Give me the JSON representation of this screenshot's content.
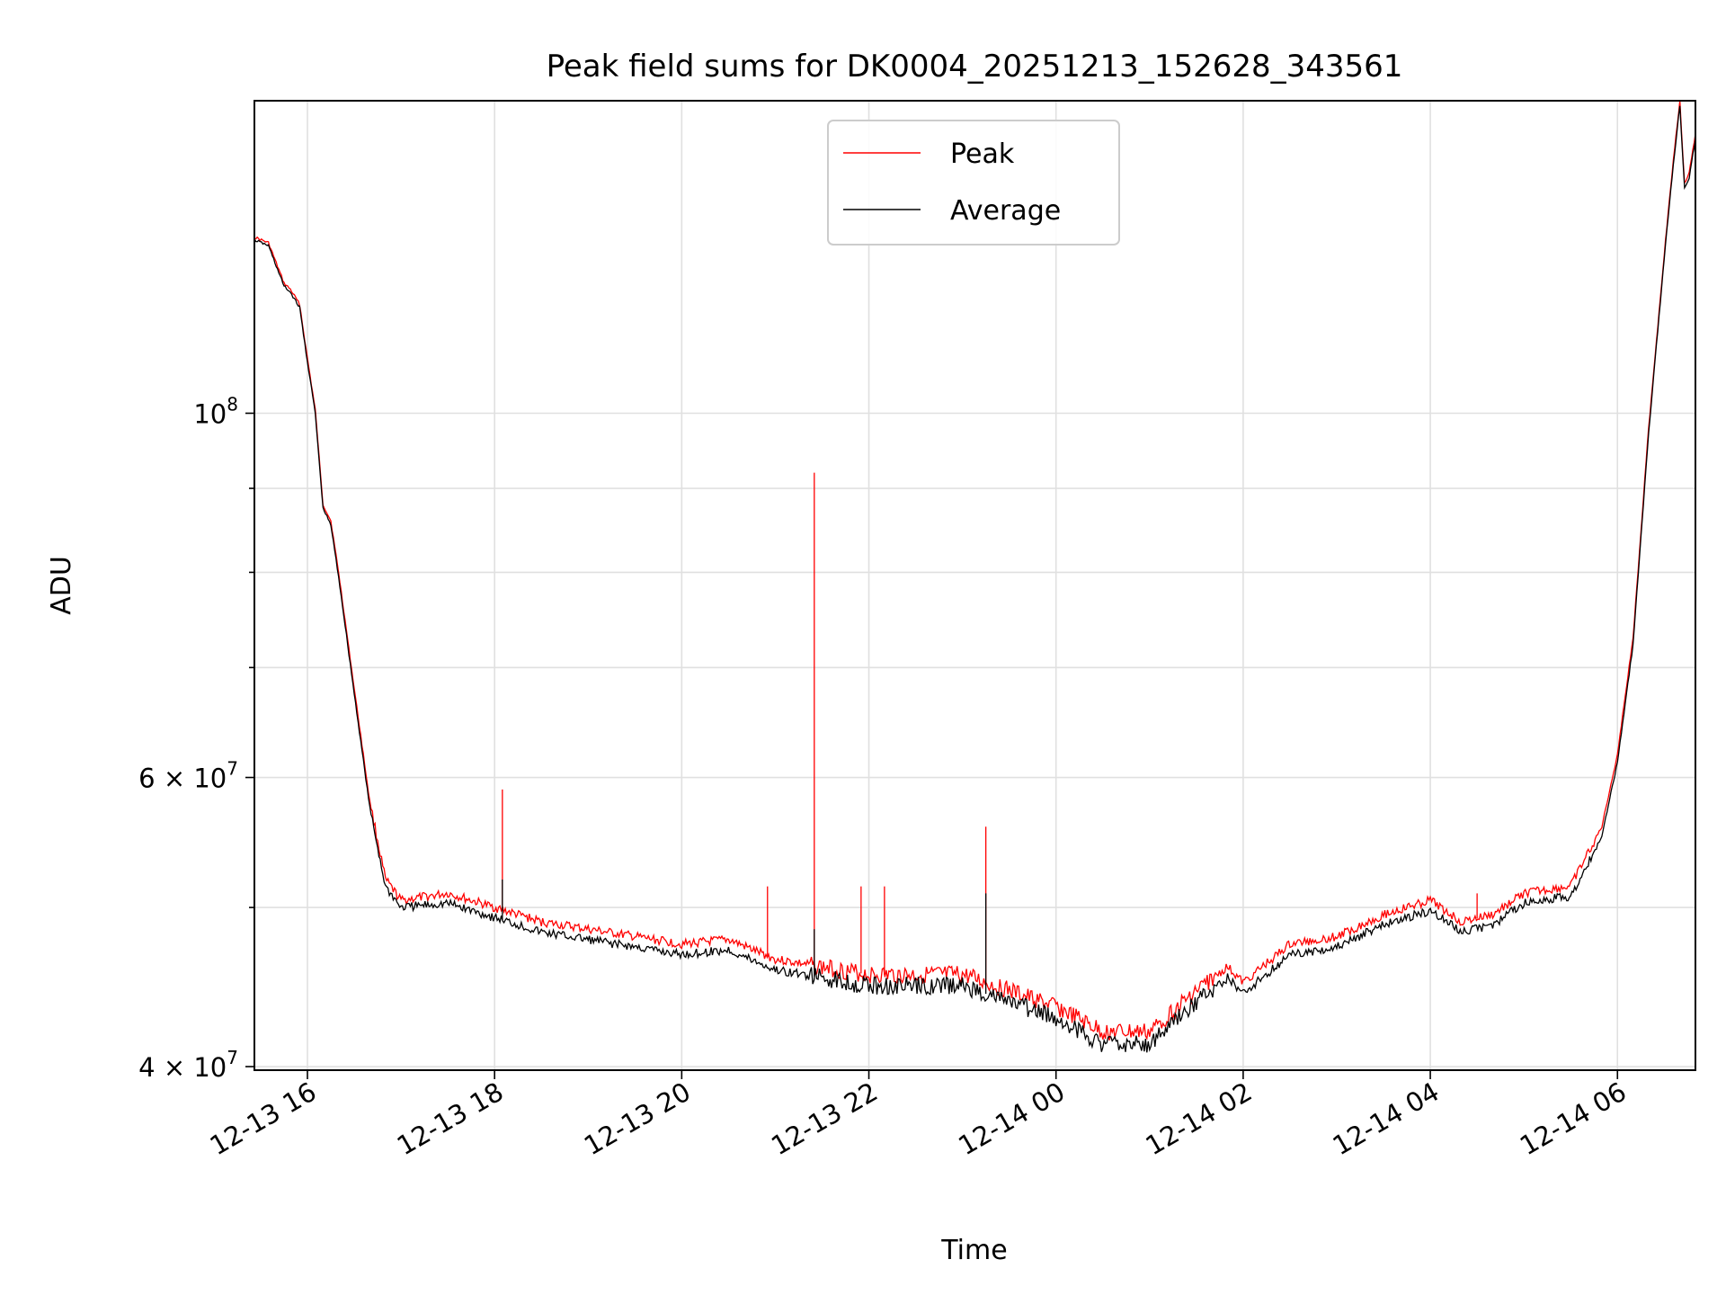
{
  "chart_data": {
    "type": "line",
    "title": "Peak field sums for DK0004_20251213_152628_343561",
    "xlabel": "Time",
    "ylabel": "ADU",
    "x_unit": "hours (date-time axis, 2025-12-13 → 2025-12-14)",
    "xlim": [
      "2025-12-13 15:26",
      "2025-12-14 06:50"
    ],
    "ylim": [
      39800000,
      155000000
    ],
    "yscale": "log",
    "grid": true,
    "legend_position": "upper-center",
    "x_tick_labels": [
      "12-13 16",
      "12-13 18",
      "12-13 20",
      "12-13 22",
      "12-14 00",
      "12-14 02",
      "12-14 04",
      "12-14 06"
    ],
    "y_tick_labels": [
      {
        "value": 100000000,
        "base": "10",
        "exp": "8"
      },
      {
        "value": 60000000,
        "base": "6 × 10",
        "exp": "7"
      },
      {
        "value": 40000000,
        "base": "4 × 10",
        "exp": "7"
      }
    ],
    "y_minor_ticks": [
      50000000,
      70000000,
      80000000,
      90000000
    ],
    "series": [
      {
        "name": "Peak",
        "color": "#ff0000",
        "points": [
          [
            "2025-12-13 15:26",
            128000000
          ],
          [
            "2025-12-13 15:35",
            127000000
          ],
          [
            "2025-12-13 15:45",
            120000000
          ],
          [
            "2025-12-13 15:49",
            119000000
          ],
          [
            "2025-12-13 15:55",
            116500000
          ],
          [
            "2025-12-13 16:00",
            108000000
          ],
          [
            "2025-12-13 16:05",
            100500000
          ],
          [
            "2025-12-13 16:10",
            88000000
          ],
          [
            "2025-12-13 16:15",
            86000000
          ],
          [
            "2025-12-13 16:20",
            80000000
          ],
          [
            "2025-12-13 16:30",
            68000000
          ],
          [
            "2025-12-13 16:40",
            58000000
          ],
          [
            "2025-12-13 16:50",
            52000000
          ],
          [
            "2025-12-13 17:00",
            50500000
          ],
          [
            "2025-12-13 17:30",
            51000000
          ],
          [
            "2025-12-13 18:00",
            50000000
          ],
          [
            "2025-12-13 18:30",
            49000000
          ],
          [
            "2025-12-13 19:00",
            48500000
          ],
          [
            "2025-12-13 19:30",
            48000000
          ],
          [
            "2025-12-13 20:00",
            47500000
          ],
          [
            "2025-12-13 20:30",
            47800000
          ],
          [
            "2025-12-13 21:00",
            46500000
          ],
          [
            "2025-12-13 21:30",
            46000000
          ],
          [
            "2025-12-13 22:00",
            45500000
          ],
          [
            "2025-12-13 22:30",
            45500000
          ],
          [
            "2025-12-13 23:00",
            45500000
          ],
          [
            "2025-12-13 23:30",
            44500000
          ],
          [
            "2025-12-14 00:00",
            43500000
          ],
          [
            "2025-12-14 00:30",
            42000000
          ],
          [
            "2025-12-14 01:00",
            42000000
          ],
          [
            "2025-12-14 01:30",
            44500000
          ],
          [
            "2025-12-14 01:50",
            46000000
          ],
          [
            "2025-12-14 02:00",
            45000000
          ],
          [
            "2025-12-14 02:30",
            47500000
          ],
          [
            "2025-12-14 03:00",
            48000000
          ],
          [
            "2025-12-14 03:30",
            49500000
          ],
          [
            "2025-12-14 04:00",
            50500000
          ],
          [
            "2025-12-14 04:20",
            49000000
          ],
          [
            "2025-12-14 04:40",
            49500000
          ],
          [
            "2025-12-14 05:00",
            51000000
          ],
          [
            "2025-12-14 05:30",
            51500000
          ],
          [
            "2025-12-14 05:50",
            56000000
          ],
          [
            "2025-12-14 06:00",
            62000000
          ],
          [
            "2025-12-14 06:10",
            73000000
          ],
          [
            "2025-12-14 06:20",
            98000000
          ],
          [
            "2025-12-14 06:30",
            125000000
          ],
          [
            "2025-12-14 06:35",
            140000000
          ],
          [
            "2025-12-14 06:40",
            155000000
          ],
          [
            "2025-12-14 06:43",
            138000000
          ],
          [
            "2025-12-14 06:46",
            140000000
          ],
          [
            "2025-12-14 06:50",
            148000000
          ]
        ],
        "spikes": [
          [
            "2025-12-13 18:05",
            59000000
          ],
          [
            "2025-12-13 20:55",
            51500000
          ],
          [
            "2025-12-13 21:25",
            92000000
          ],
          [
            "2025-12-13 21:55",
            51500000
          ],
          [
            "2025-12-13 22:10",
            51500000
          ],
          [
            "2025-12-13 23:15",
            56000000
          ],
          [
            "2025-12-14 04:30",
            51000000
          ]
        ]
      },
      {
        "name": "Average",
        "color": "#000000",
        "points": [
          [
            "2025-12-13 15:26",
            127500000
          ],
          [
            "2025-12-13 15:35",
            126500000
          ],
          [
            "2025-12-13 15:45",
            119500000
          ],
          [
            "2025-12-13 15:49",
            118500000
          ],
          [
            "2025-12-13 15:55",
            116000000
          ],
          [
            "2025-12-13 16:00",
            107500000
          ],
          [
            "2025-12-13 16:05",
            100000000
          ],
          [
            "2025-12-13 16:10",
            87500000
          ],
          [
            "2025-12-13 16:15",
            85500000
          ],
          [
            "2025-12-13 16:20",
            79500000
          ],
          [
            "2025-12-13 16:30",
            67500000
          ],
          [
            "2025-12-13 16:40",
            57500000
          ],
          [
            "2025-12-13 16:50",
            51500000
          ],
          [
            "2025-12-13 17:00",
            50000000
          ],
          [
            "2025-12-13 17:30",
            50300000
          ],
          [
            "2025-12-13 18:00",
            49300000
          ],
          [
            "2025-12-13 18:30",
            48300000
          ],
          [
            "2025-12-13 19:00",
            47800000
          ],
          [
            "2025-12-13 19:30",
            47300000
          ],
          [
            "2025-12-13 20:00",
            46800000
          ],
          [
            "2025-12-13 20:30",
            47100000
          ],
          [
            "2025-12-13 21:00",
            45800000
          ],
          [
            "2025-12-13 21:30",
            45300000
          ],
          [
            "2025-12-13 22:00",
            44800000
          ],
          [
            "2025-12-13 22:30",
            44800000
          ],
          [
            "2025-12-13 23:00",
            44800000
          ],
          [
            "2025-12-13 23:30",
            43800000
          ],
          [
            "2025-12-14 00:00",
            42800000
          ],
          [
            "2025-12-14 00:30",
            41300000
          ],
          [
            "2025-12-14 01:00",
            41300000
          ],
          [
            "2025-12-14 01:30",
            43800000
          ],
          [
            "2025-12-14 01:50",
            45300000
          ],
          [
            "2025-12-14 02:00",
            44300000
          ],
          [
            "2025-12-14 02:30",
            46800000
          ],
          [
            "2025-12-14 03:00",
            47300000
          ],
          [
            "2025-12-14 03:30",
            48800000
          ],
          [
            "2025-12-14 04:00",
            49800000
          ],
          [
            "2025-12-14 04:20",
            48300000
          ],
          [
            "2025-12-14 04:40",
            48800000
          ],
          [
            "2025-12-14 05:00",
            50300000
          ],
          [
            "2025-12-14 05:30",
            50800000
          ],
          [
            "2025-12-14 05:50",
            55300000
          ],
          [
            "2025-12-14 06:00",
            61300000
          ],
          [
            "2025-12-14 06:10",
            72300000
          ],
          [
            "2025-12-14 06:20",
            97300000
          ],
          [
            "2025-12-14 06:30",
            124300000
          ],
          [
            "2025-12-14 06:35",
            139300000
          ],
          [
            "2025-12-14 06:40",
            154000000
          ],
          [
            "2025-12-14 06:43",
            137000000
          ],
          [
            "2025-12-14 06:46",
            139000000
          ],
          [
            "2025-12-14 06:50",
            147000000
          ]
        ],
        "spikes": [
          [
            "2025-12-13 18:05",
            52000000
          ],
          [
            "2025-12-13 21:25",
            48500000
          ],
          [
            "2025-12-13 23:15",
            51000000
          ]
        ]
      }
    ]
  }
}
